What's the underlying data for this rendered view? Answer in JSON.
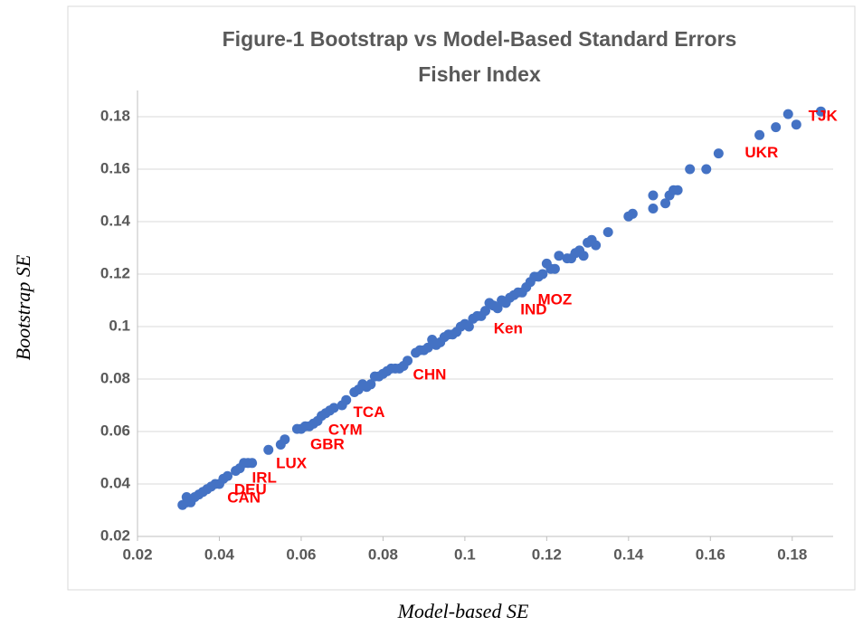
{
  "chart_data": {
    "type": "scatter",
    "title": "Figure-1 Bootstrap vs Model-Based Standard Errors",
    "subtitle": "Fisher Index",
    "x_label": "Model-based SE",
    "y_label": "Bootstrap SE",
    "color": "#4472c4",
    "grid": true,
    "xlim": [
      0.02,
      0.19
    ],
    "ylim": [
      0.02,
      0.19
    ],
    "xticks": [
      0.02,
      0.04,
      0.06,
      0.08,
      0.1,
      0.12,
      0.14,
      0.16,
      0.18
    ],
    "yticks": [
      0.02,
      0.04,
      0.06,
      0.08,
      0.1,
      0.12,
      0.14,
      0.16,
      0.18
    ],
    "x": [
      0.031,
      0.032,
      0.032,
      0.033,
      0.034,
      0.035,
      0.036,
      0.037,
      0.038,
      0.039,
      0.04,
      0.041,
      0.042,
      0.044,
      0.045,
      0.046,
      0.047,
      0.048,
      0.052,
      0.055,
      0.056,
      0.059,
      0.06,
      0.061,
      0.062,
      0.063,
      0.064,
      0.065,
      0.066,
      0.067,
      0.068,
      0.07,
      0.071,
      0.073,
      0.074,
      0.075,
      0.076,
      0.077,
      0.078,
      0.079,
      0.08,
      0.081,
      0.082,
      0.083,
      0.084,
      0.085,
      0.086,
      0.088,
      0.089,
      0.09,
      0.091,
      0.092,
      0.093,
      0.094,
      0.095,
      0.096,
      0.097,
      0.098,
      0.099,
      0.1,
      0.101,
      0.102,
      0.103,
      0.104,
      0.105,
      0.106,
      0.107,
      0.108,
      0.109,
      0.11,
      0.111,
      0.112,
      0.113,
      0.114,
      0.115,
      0.116,
      0.117,
      0.118,
      0.119,
      0.12,
      0.121,
      0.122,
      0.123,
      0.125,
      0.126,
      0.127,
      0.128,
      0.129,
      0.13,
      0.131,
      0.132,
      0.135,
      0.14,
      0.141,
      0.146,
      0.146,
      0.149,
      0.15,
      0.151,
      0.152,
      0.155,
      0.159,
      0.162,
      0.172,
      0.176,
      0.179,
      0.181,
      0.187
    ],
    "y": [
      0.032,
      0.035,
      0.033,
      0.033,
      0.035,
      0.036,
      0.037,
      0.038,
      0.039,
      0.04,
      0.04,
      0.042,
      0.043,
      0.045,
      0.046,
      0.048,
      0.048,
      0.048,
      0.053,
      0.055,
      0.057,
      0.061,
      0.061,
      0.062,
      0.062,
      0.063,
      0.064,
      0.066,
      0.067,
      0.068,
      0.069,
      0.07,
      0.072,
      0.075,
      0.076,
      0.078,
      0.077,
      0.078,
      0.081,
      0.081,
      0.082,
      0.083,
      0.084,
      0.084,
      0.084,
      0.085,
      0.087,
      0.09,
      0.091,
      0.091,
      0.092,
      0.095,
      0.093,
      0.094,
      0.096,
      0.097,
      0.097,
      0.098,
      0.1,
      0.101,
      0.1,
      0.103,
      0.104,
      0.104,
      0.106,
      0.109,
      0.108,
      0.107,
      0.11,
      0.109,
      0.111,
      0.112,
      0.113,
      0.113,
      0.115,
      0.117,
      0.119,
      0.119,
      0.12,
      0.124,
      0.122,
      0.122,
      0.127,
      0.126,
      0.126,
      0.128,
      0.129,
      0.127,
      0.132,
      0.133,
      0.131,
      0.136,
      0.142,
      0.143,
      0.145,
      0.15,
      0.147,
      0.15,
      0.152,
      0.152,
      0.16,
      0.16,
      0.166,
      0.173,
      0.176,
      0.181,
      0.177,
      0.182
    ],
    "annotations": [
      {
        "text": "TJK",
        "x": 0.1875,
        "y": 0.18
      },
      {
        "text": "UKR",
        "x": 0.1725,
        "y": 0.166
      },
      {
        "text": "MOZ",
        "x": 0.122,
        "y": 0.11
      },
      {
        "text": "IND",
        "x": 0.1168,
        "y": 0.1062
      },
      {
        "text": "Ken",
        "x": 0.1106,
        "y": 0.099
      },
      {
        "text": "CHN",
        "x": 0.0914,
        "y": 0.0814
      },
      {
        "text": "TCA",
        "x": 0.0766,
        "y": 0.067
      },
      {
        "text": "CYM",
        "x": 0.0708,
        "y": 0.0603
      },
      {
        "text": "GBR",
        "x": 0.0664,
        "y": 0.0548
      },
      {
        "text": "LUX",
        "x": 0.0576,
        "y": 0.0476
      },
      {
        "text": "IRL",
        "x": 0.051,
        "y": 0.042
      },
      {
        "text": "DEU",
        "x": 0.0476,
        "y": 0.0376
      },
      {
        "text": "CAN",
        "x": 0.046,
        "y": 0.0345
      }
    ]
  }
}
